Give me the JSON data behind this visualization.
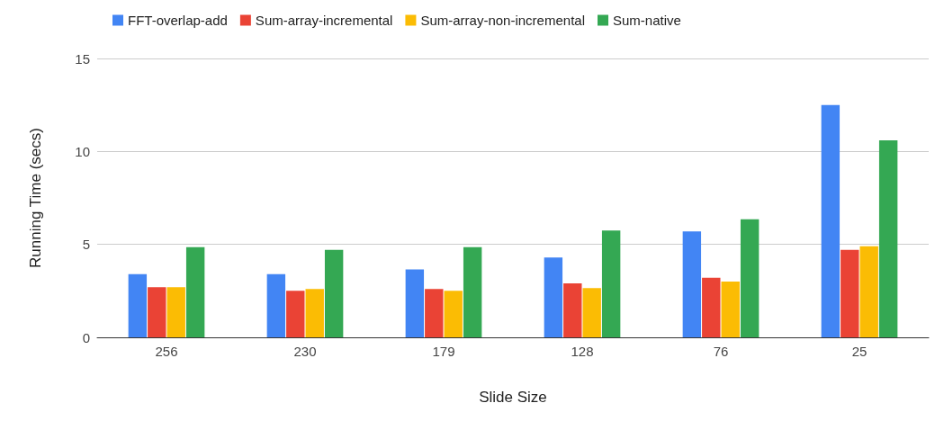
{
  "chart_data": {
    "type": "bar",
    "xlabel": "Slide Size",
    "ylabel": "Running Time (secs)",
    "categories": [
      "256",
      "230",
      "179",
      "128",
      "76",
      "25"
    ],
    "series": [
      {
        "name": "FFT-overlap-add",
        "color": "#4285f4",
        "values": [
          3.4,
          3.4,
          3.65,
          4.3,
          5.7,
          12.5
        ]
      },
      {
        "name": "Sum-array-incremental",
        "color": "#ea4335",
        "values": [
          2.7,
          2.5,
          2.6,
          2.9,
          3.2,
          4.7
        ]
      },
      {
        "name": "Sum-array-non-incremental",
        "color": "#fbbc04",
        "values": [
          2.7,
          2.6,
          2.5,
          2.65,
          3.0,
          4.9
        ]
      },
      {
        "name": "Sum-native",
        "color": "#34a853",
        "values": [
          4.85,
          4.7,
          4.85,
          5.75,
          6.35,
          10.6
        ]
      }
    ],
    "ylim": [
      0,
      15
    ],
    "yticks": [
      0,
      5,
      10,
      15
    ],
    "grid": "y",
    "legend": "top left"
  }
}
